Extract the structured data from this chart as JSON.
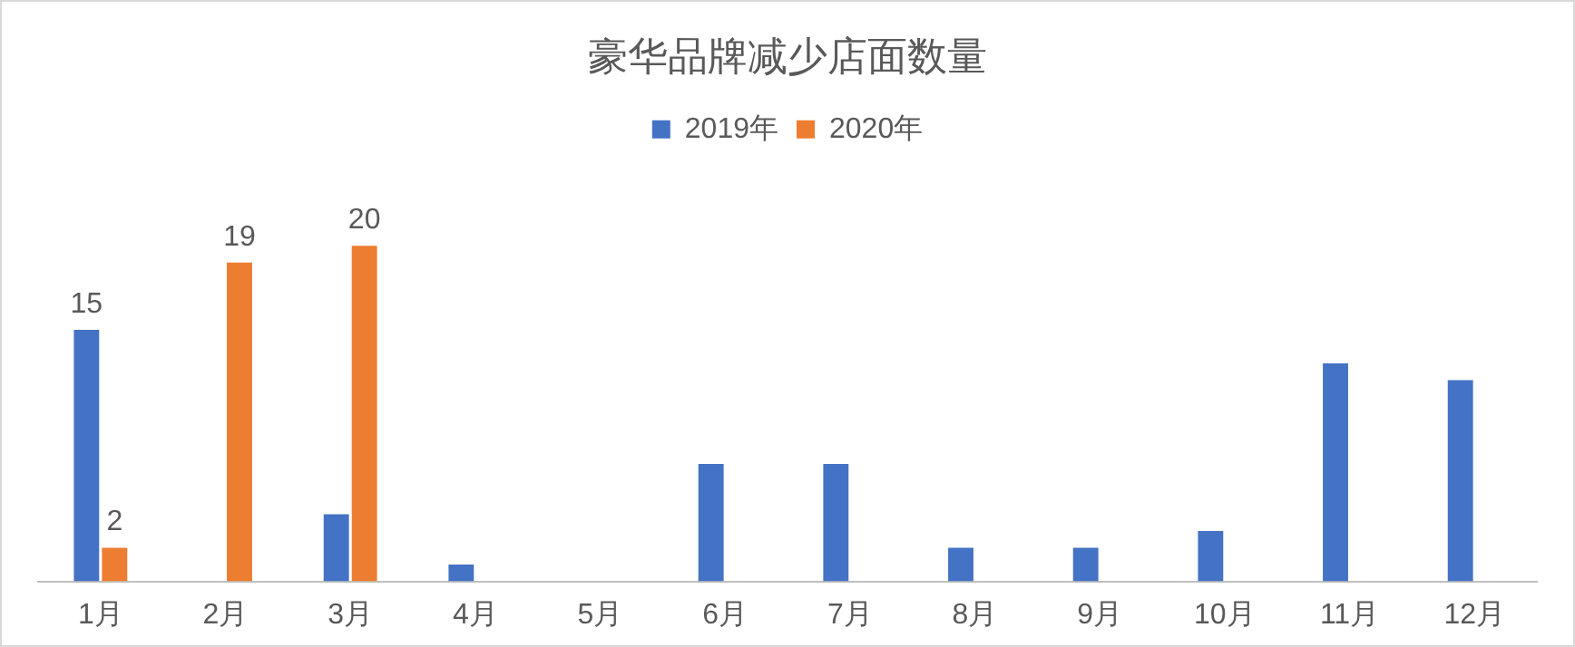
{
  "chart_data": {
    "type": "bar",
    "title": "豪华品牌减少店面数量",
    "categories": [
      "1月",
      "2月",
      "3月",
      "4月",
      "5月",
      "6月",
      "7月",
      "8月",
      "9月",
      "10月",
      "11月",
      "12月"
    ],
    "series": [
      {
        "name": "2019年",
        "color": "#4472c4",
        "values": [
          15,
          0,
          4,
          1,
          0,
          7,
          7,
          2,
          2,
          3,
          13,
          12
        ],
        "value_labels": [
          "15",
          null,
          null,
          null,
          null,
          null,
          null,
          null,
          null,
          null,
          null,
          null
        ]
      },
      {
        "name": "2020年",
        "color": "#ed7d31",
        "values": [
          2,
          19,
          20,
          null,
          null,
          null,
          null,
          null,
          null,
          null,
          null,
          null
        ],
        "value_labels": [
          "2",
          "19",
          "20",
          null,
          null,
          null,
          null,
          null,
          null,
          null,
          null,
          null
        ]
      }
    ],
    "legend": "top",
    "grid": false
  }
}
